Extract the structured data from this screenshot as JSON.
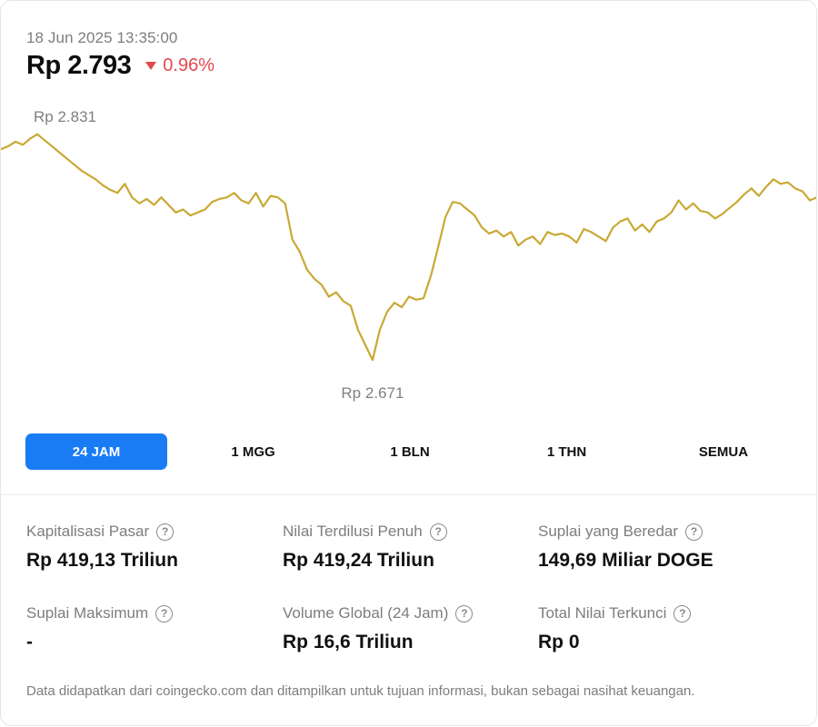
{
  "header": {
    "timestamp": "18 Jun 2025 13:35:00",
    "price": "Rp 2.793",
    "change": "0.96%",
    "change_direction": "down",
    "change_color": "#e5484d"
  },
  "chart_data": {
    "type": "line",
    "line_color": "#c9a935",
    "high_label": "Rp 2.831",
    "low_label": "Rp 2.671",
    "high": 2831,
    "low": 2671,
    "ylim": [
      2671,
      2831
    ],
    "values": [
      2820,
      2822,
      2825,
      2823,
      2827,
      2830,
      2826,
      2822,
      2818,
      2814,
      2810,
      2806,
      2803,
      2800,
      2796,
      2793,
      2791,
      2797,
      2788,
      2784,
      2787,
      2783,
      2788,
      2783,
      2778,
      2780,
      2776,
      2778,
      2780,
      2785,
      2787,
      2788,
      2791,
      2786,
      2784,
      2791,
      2782,
      2789,
      2788,
      2784,
      2760,
      2752,
      2740,
      2734,
      2730,
      2722,
      2725,
      2719,
      2716,
      2700,
      2690,
      2680,
      2700,
      2712,
      2718,
      2715,
      2722,
      2720,
      2721,
      2736,
      2755,
      2775,
      2785,
      2784,
      2780,
      2776,
      2768,
      2764,
      2766,
      2762,
      2765,
      2756,
      2760,
      2762,
      2757,
      2765,
      2763,
      2764,
      2762,
      2758,
      2767,
      2765,
      2762,
      2759,
      2768,
      2772,
      2774,
      2766,
      2770,
      2765,
      2772,
      2774,
      2778,
      2786,
      2780,
      2784,
      2779,
      2778,
      2774,
      2777,
      2781,
      2785,
      2790,
      2794,
      2789,
      2795,
      2800,
      2797,
      2798,
      2794,
      2792,
      2786,
      2788
    ]
  },
  "tabs": [
    {
      "label": "24 JAM",
      "active": true
    },
    {
      "label": "1 MGG",
      "active": false
    },
    {
      "label": "1 BLN",
      "active": false
    },
    {
      "label": "1 THN",
      "active": false
    },
    {
      "label": "SEMUA",
      "active": false
    }
  ],
  "tab_active_color": "#1a7cf5",
  "stats": [
    {
      "label": "Kapitalisasi Pasar",
      "value": "Rp 419,13 Triliun"
    },
    {
      "label": "Nilai Terdilusi Penuh",
      "value": "Rp 419,24 Triliun"
    },
    {
      "label": "Suplai yang Beredar",
      "value": "149,69 Miliar DOGE"
    },
    {
      "label": "Suplai Maksimum",
      "value": "-"
    },
    {
      "label": "Volume Global (24 Jam)",
      "value": "Rp 16,6 Triliun"
    },
    {
      "label": "Total Nilai Terkunci",
      "value": "Rp 0"
    }
  ],
  "help_glyph": "?",
  "footnote": "Data didapatkan dari coingecko.com dan ditampilkan untuk tujuan informasi, bukan sebagai nasihat keuangan."
}
